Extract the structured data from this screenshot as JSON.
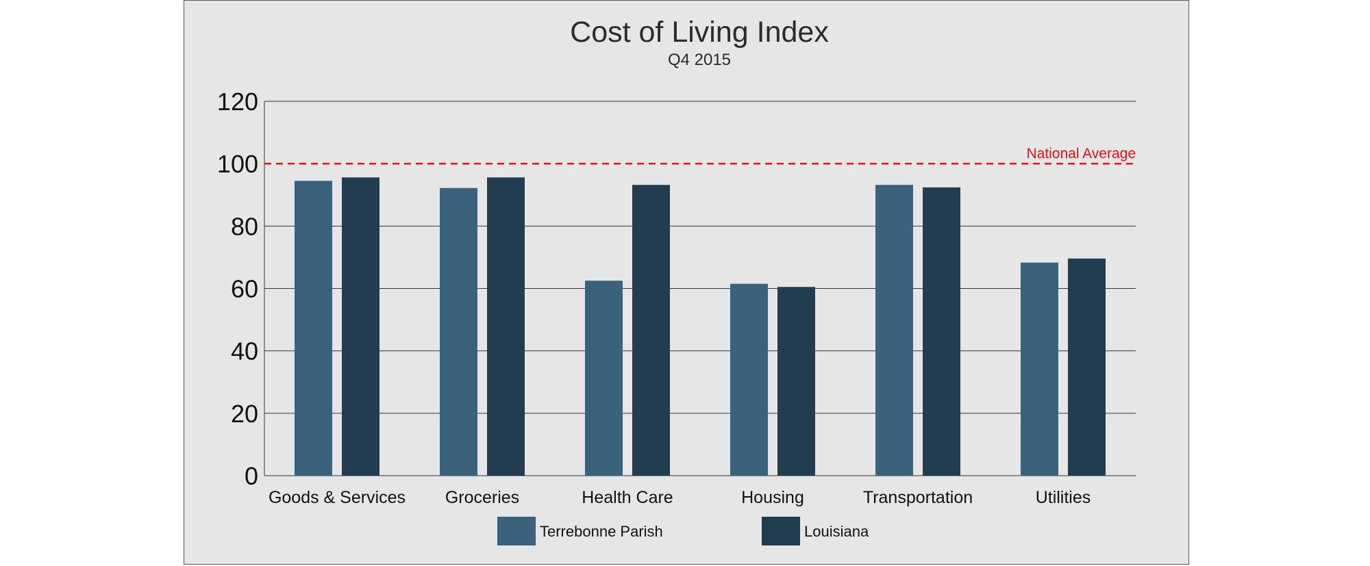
{
  "chart_data": {
    "type": "bar",
    "title": "Cost of Living Index",
    "subtitle": "Q4 2015",
    "categories": [
      "Goods & Services",
      "Groceries",
      "Health Care",
      "Housing",
      "Transportation",
      "Utilities"
    ],
    "series": [
      {
        "name": "Terrebonne Parish",
        "color": "#3b627c",
        "values": [
          94.5,
          92.2,
          62.5,
          61.5,
          93.2,
          68.3
        ]
      },
      {
        "name": "Louisiana",
        "color": "#223c50",
        "values": [
          95.6,
          95.6,
          93.2,
          60.5,
          92.4,
          69.6
        ]
      }
    ],
    "ylim": [
      0,
      120
    ],
    "yticks": [
      "0",
      "20",
      "40",
      "60",
      "80",
      "100",
      "120"
    ],
    "grid": true,
    "legend_position": "bottom",
    "reference_line": {
      "label": "National Average",
      "value": 100,
      "color": "#e0101a"
    }
  }
}
